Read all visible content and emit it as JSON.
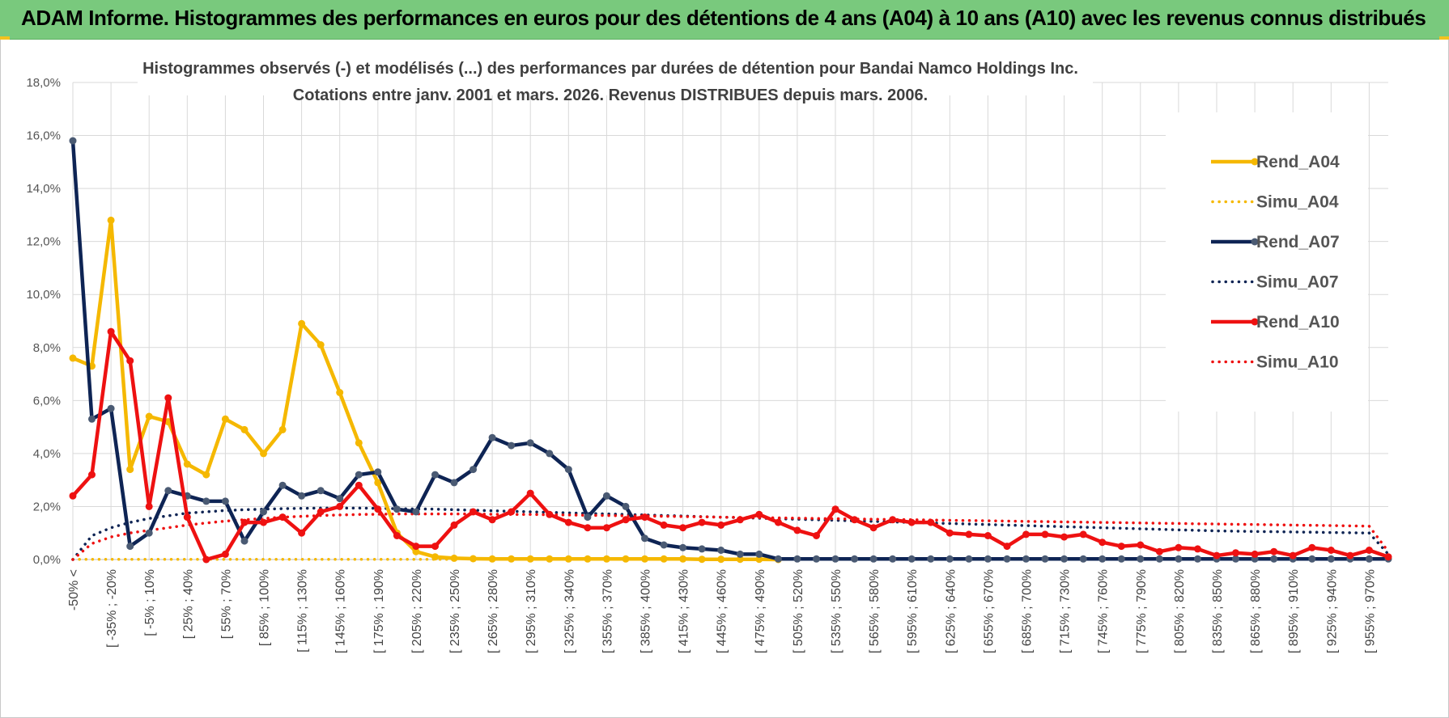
{
  "header": {
    "title": "ADAM Informe. Histogrammes des performances en euros pour des détentions de 4 ans (A04) à 10 ans (A10) avec les revenus connus distribués"
  },
  "colors": {
    "title_bar": "#79c97d",
    "A04": "#f5b800",
    "A07": "#0e2454",
    "A07_marker": "#4a5a73",
    "A10": "#ee1111"
  },
  "chart_data": {
    "type": "line",
    "title_line1": "Histogrammes observés (-) et modélisés (...) des performances par durées de détention pour Bandai Namco Holdings Inc.",
    "title_line2": "Cotations entre janv. 2001 et mars. 2026. Revenus DISTRIBUES depuis mars. 2006.",
    "xlabel": "",
    "ylabel": "",
    "ylim": [
      0,
      18
    ],
    "y_ticks": [
      "0,0%",
      "2,0%",
      "4,0%",
      "6,0%",
      "8,0%",
      "10,0%",
      "12,0%",
      "14,0%",
      "16,0%",
      "18,0%"
    ],
    "x_tick_labels": [
      "-50% <",
      "[ -35% ; -20%",
      "[ -5% ; 10%",
      "[ 25% ; 40%",
      "[ 55% ; 70%",
      "[ 85% ; 100%",
      "[ 115% ; 130%",
      "[ 145% ; 160%",
      "[ 175% ; 190%",
      "[ 205% ; 220%",
      "[ 235% ; 250%",
      "[ 265% ; 280%",
      "[ 295% ; 310%",
      "[ 325% ; 340%",
      "[ 355% ; 370%",
      "[ 385% ; 400%",
      "[ 415% ; 430%",
      "[ 445% ; 460%",
      "[ 475% ; 490%",
      "[ 505% ; 520%",
      "[ 535% ; 550%",
      "[ 565% ; 580%",
      "[ 595% ; 610%",
      "[ 625% ; 640%",
      "[ 655% ; 670%",
      "[ 685% ; 700%",
      "[ 715% ; 730%",
      "[ 745% ; 760%",
      "[ 775% ; 790%",
      "[ 805% ; 820%",
      "[ 835% ; 850%",
      "[ 865% ; 880%",
      "[ 895% ; 910%",
      "[ 925% ; 940%",
      "[ 955% ; 970%"
    ],
    "grid": true,
    "legend_position": "right",
    "series": [
      {
        "name": "Rend_A04",
        "style": "solid",
        "color_key": "A04",
        "values": [
          7.6,
          7.3,
          12.8,
          3.4,
          5.4,
          5.2,
          3.6,
          3.2,
          5.3,
          4.9,
          4.0,
          4.9,
          8.9,
          8.1,
          6.3,
          4.4,
          2.9,
          1.0,
          0.3,
          0.1,
          0.05,
          0.03,
          0.02,
          0.02,
          0.02,
          0.02,
          0.02,
          0.02,
          0.02,
          0.02,
          0.02,
          0.02,
          0.02,
          0.01,
          0.01,
          0.01,
          0.01,
          0.0
        ]
      },
      {
        "name": "Simu_A04",
        "style": "dotted",
        "color_key": "A04",
        "values": [
          0.01,
          0.01,
          0.01,
          0.01,
          0.01,
          0.01,
          0.01,
          0.01,
          0.01,
          0.01,
          0.01,
          0.01,
          0.01,
          0.01,
          0.01,
          0.01,
          0.01,
          0.01,
          0.01,
          0.01,
          0.01
        ]
      },
      {
        "name": "Rend_A07",
        "style": "solid",
        "color_key": "A07",
        "values": [
          15.8,
          5.3,
          5.7,
          0.5,
          1.0,
          2.6,
          2.4,
          2.2,
          2.2,
          0.7,
          1.8,
          2.8,
          2.4,
          2.6,
          2.3,
          3.2,
          3.3,
          1.9,
          1.8,
          3.2,
          2.9,
          3.4,
          4.6,
          4.3,
          4.4,
          4.0,
          3.4,
          1.6,
          2.4,
          2.0,
          0.8,
          0.55,
          0.45,
          0.4,
          0.35,
          0.2,
          0.2,
          0.02,
          0.02,
          0.02,
          0.02,
          0.02,
          0.02,
          0.02,
          0.02,
          0.02,
          0.02,
          0.02,
          0.02,
          0.02,
          0.02,
          0.02,
          0.02,
          0.02,
          0.02,
          0.02,
          0.02,
          0.02,
          0.02,
          0.02,
          0.02,
          0.02,
          0.02,
          0.02,
          0.02,
          0.02,
          0.02,
          0.02,
          0.02,
          0.02
        ]
      },
      {
        "name": "Simu_A07",
        "style": "dotted",
        "color_key": "A07",
        "values": [
          0.0,
          0.9,
          1.2,
          1.4,
          1.55,
          1.65,
          1.75,
          1.8,
          1.85,
          1.88,
          1.9,
          1.92,
          1.93,
          1.94,
          1.94,
          1.94,
          1.93,
          1.92,
          1.91,
          1.9,
          1.88,
          1.86,
          1.84,
          1.82,
          1.8,
          1.78,
          1.76,
          1.74,
          1.72,
          1.7,
          1.68,
          1.66,
          1.64,
          1.62,
          1.6,
          1.58,
          1.56,
          1.54,
          1.52,
          1.5,
          1.48,
          1.46,
          1.44,
          1.42,
          1.4,
          1.38,
          1.36,
          1.34,
          1.32,
          1.3,
          1.28,
          1.26,
          1.24,
          1.22,
          1.2,
          1.18,
          1.16,
          1.14,
          1.12,
          1.1,
          1.08,
          1.07,
          1.06,
          1.05,
          1.04,
          1.03,
          1.02,
          1.01,
          1.0,
          0.2
        ]
      },
      {
        "name": "Rend_A10",
        "style": "solid",
        "color_key": "A10",
        "values": [
          2.4,
          3.2,
          8.6,
          7.5,
          2.0,
          6.1,
          1.6,
          0.0,
          0.2,
          1.4,
          1.4,
          1.6,
          1.0,
          1.8,
          2.0,
          2.8,
          1.9,
          0.9,
          0.5,
          0.5,
          1.3,
          1.8,
          1.5,
          1.8,
          2.5,
          1.7,
          1.4,
          1.2,
          1.2,
          1.5,
          1.6,
          1.3,
          1.2,
          1.4,
          1.3,
          1.5,
          1.7,
          1.4,
          1.1,
          0.9,
          1.9,
          1.5,
          1.2,
          1.5,
          1.4,
          1.4,
          1.0,
          0.95,
          0.9,
          0.5,
          0.95,
          0.95,
          0.85,
          0.95,
          0.65,
          0.5,
          0.55,
          0.3,
          0.45,
          0.4,
          0.15,
          0.25,
          0.2,
          0.3,
          0.15,
          0.45,
          0.35,
          0.15,
          0.35,
          0.1
        ]
      },
      {
        "name": "Simu_A10",
        "style": "dotted",
        "color_key": "A10",
        "values": [
          0.0,
          0.6,
          0.85,
          1.0,
          1.1,
          1.2,
          1.3,
          1.38,
          1.45,
          1.5,
          1.55,
          1.6,
          1.63,
          1.66,
          1.68,
          1.7,
          1.71,
          1.72,
          1.72,
          1.72,
          1.72,
          1.72,
          1.71,
          1.7,
          1.7,
          1.69,
          1.68,
          1.67,
          1.66,
          1.65,
          1.64,
          1.63,
          1.62,
          1.61,
          1.6,
          1.59,
          1.58,
          1.57,
          1.56,
          1.55,
          1.54,
          1.53,
          1.52,
          1.51,
          1.5,
          1.49,
          1.48,
          1.47,
          1.46,
          1.45,
          1.44,
          1.43,
          1.42,
          1.41,
          1.4,
          1.39,
          1.38,
          1.37,
          1.36,
          1.35,
          1.34,
          1.33,
          1.32,
          1.31,
          1.3,
          1.29,
          1.28,
          1.27,
          1.26,
          0.3
        ]
      }
    ]
  }
}
